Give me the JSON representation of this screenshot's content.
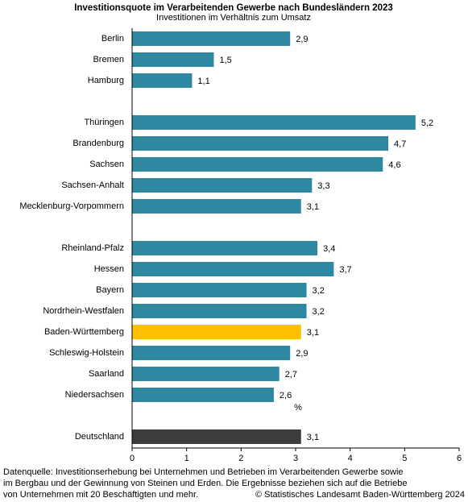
{
  "chart_data": {
    "type": "barh",
    "title": "Investitionsquote im Verarbeitenden Gewerbe nach Bundesländern 2023",
    "subtitle": "Investitionen im Verhältnis zum Umsatz",
    "xlabel": "%",
    "categories": [
      "Berlin",
      "Bremen",
      "Hamburg",
      null,
      "Thüringen",
      "Brandenburg",
      "Sachsen",
      "Sachsen-Anhalt",
      "Mecklenburg-Vorpommern",
      null,
      "Rheinland-Pfalz",
      "Hessen",
      "Bayern",
      "Nordrhein-Westfalen",
      "Baden-Württemberg",
      "Schleswig-Holstein",
      "Saarland",
      "Niedersachsen",
      null,
      "Deutschland"
    ],
    "values": [
      2.9,
      1.5,
      1.1,
      null,
      5.2,
      4.7,
      4.6,
      3.3,
      3.1,
      null,
      3.4,
      3.7,
      3.2,
      3.2,
      3.1,
      2.9,
      2.7,
      2.6,
      null,
      3.1
    ],
    "value_labels": [
      "2,9",
      "1,5",
      "1,1",
      null,
      "5,2",
      "4,7",
      "4,6",
      "3,3",
      "3,1",
      null,
      "3,4",
      "3,7",
      "3,2",
      "3,2",
      "3,1",
      "2,9",
      "2,7",
      "2,6",
      null,
      "3,1"
    ],
    "colors": [
      "#2e88a2",
      "#2e88a2",
      "#2e88a2",
      null,
      "#2e88a2",
      "#2e88a2",
      "#2e88a2",
      "#2e88a2",
      "#2e88a2",
      null,
      "#2e88a2",
      "#2e88a2",
      "#2e88a2",
      "#2e88a2",
      "#ffc000",
      "#2e88a2",
      "#2e88a2",
      "#2e88a2",
      null,
      "#3c3c3c"
    ],
    "xlim": [
      0,
      6
    ],
    "xticks": [
      0,
      1,
      2,
      3,
      4,
      5,
      6
    ],
    "grid": false,
    "footnote": [
      "Datenquelle: Investitionserhebung bei Unternehmen und Betrieben im Verarbeitenden Gewerbe sowie",
      "im Bergbau und der Gewinnung von Steinen und Erden. Die Ergebnisse beziehen sich auf die Betriebe",
      "von Unternehmen mit 20 Beschäftigten und mehr."
    ],
    "source": "© Statistisches Landesamt Baden-Württemberg 2024"
  }
}
